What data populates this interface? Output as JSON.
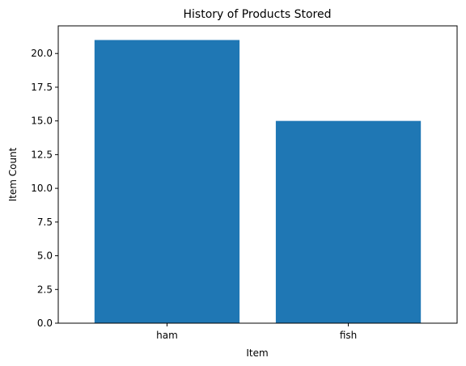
{
  "chart_data": {
    "type": "bar",
    "title": "History of Products Stored",
    "xlabel": "Item",
    "ylabel": "Item Count",
    "categories": [
      "ham",
      "fish"
    ],
    "values": [
      21,
      15
    ],
    "ylim": [
      0,
      22.05
    ],
    "yticks": [
      "0.0",
      "2.5",
      "5.0",
      "7.5",
      "10.0",
      "12.5",
      "15.0",
      "17.5",
      "20.0"
    ],
    "bar_color": "#1f77b4",
    "grid": false,
    "legend": "none"
  }
}
